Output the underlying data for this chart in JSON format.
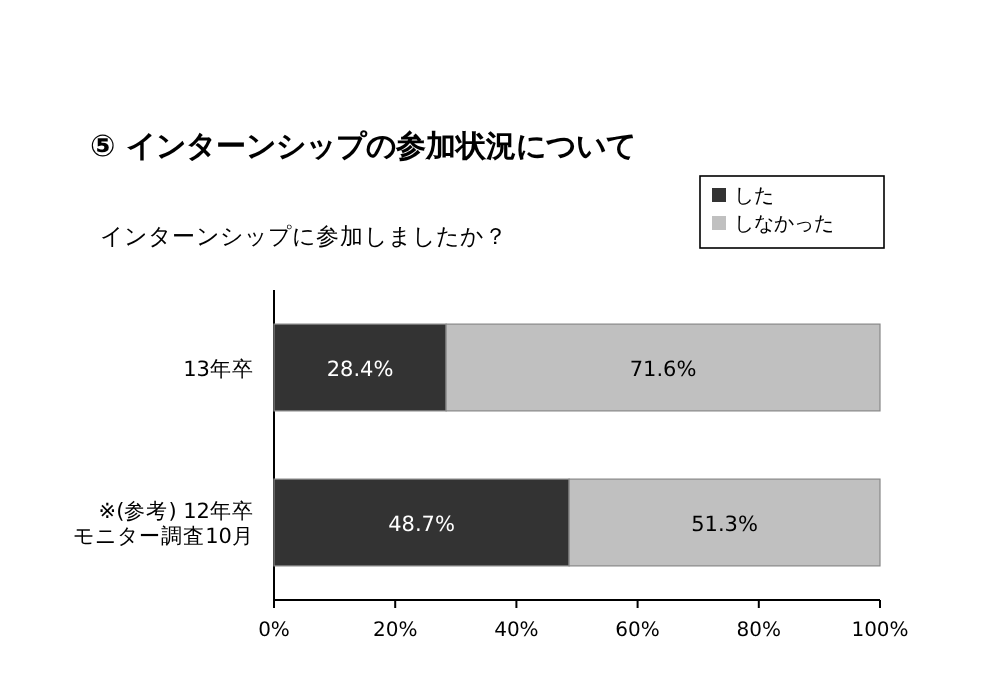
{
  "chart_data": {
    "type": "bar",
    "orientation": "horizontal",
    "stacked": true,
    "title": "⑤ インターンシップの参加状況について",
    "subtitle": "インターンシップに参加しましたか？",
    "categories": [
      "13年卒",
      "※(参考) 12年卒モニター調査10月"
    ],
    "series": [
      {
        "name": "した",
        "color": "#333333",
        "values": [
          28.4,
          48.7
        ],
        "value_labels": [
          "28.4%",
          "48.7%"
        ]
      },
      {
        "name": "しなかった",
        "color": "#c0c0c0",
        "values": [
          71.6,
          51.3
        ],
        "value_labels": [
          "71.6%",
          "51.3%"
        ]
      }
    ],
    "xlim": [
      0,
      100
    ],
    "xticks": [
      {
        "value": 0,
        "label": "0%"
      },
      {
        "value": 20,
        "label": "20%"
      },
      {
        "value": 40,
        "label": "40%"
      },
      {
        "value": 60,
        "label": "60%"
      },
      {
        "value": 80,
        "label": "80%"
      },
      {
        "value": 100,
        "label": "100%"
      }
    ],
    "legend": "top right",
    "grid": false
  }
}
